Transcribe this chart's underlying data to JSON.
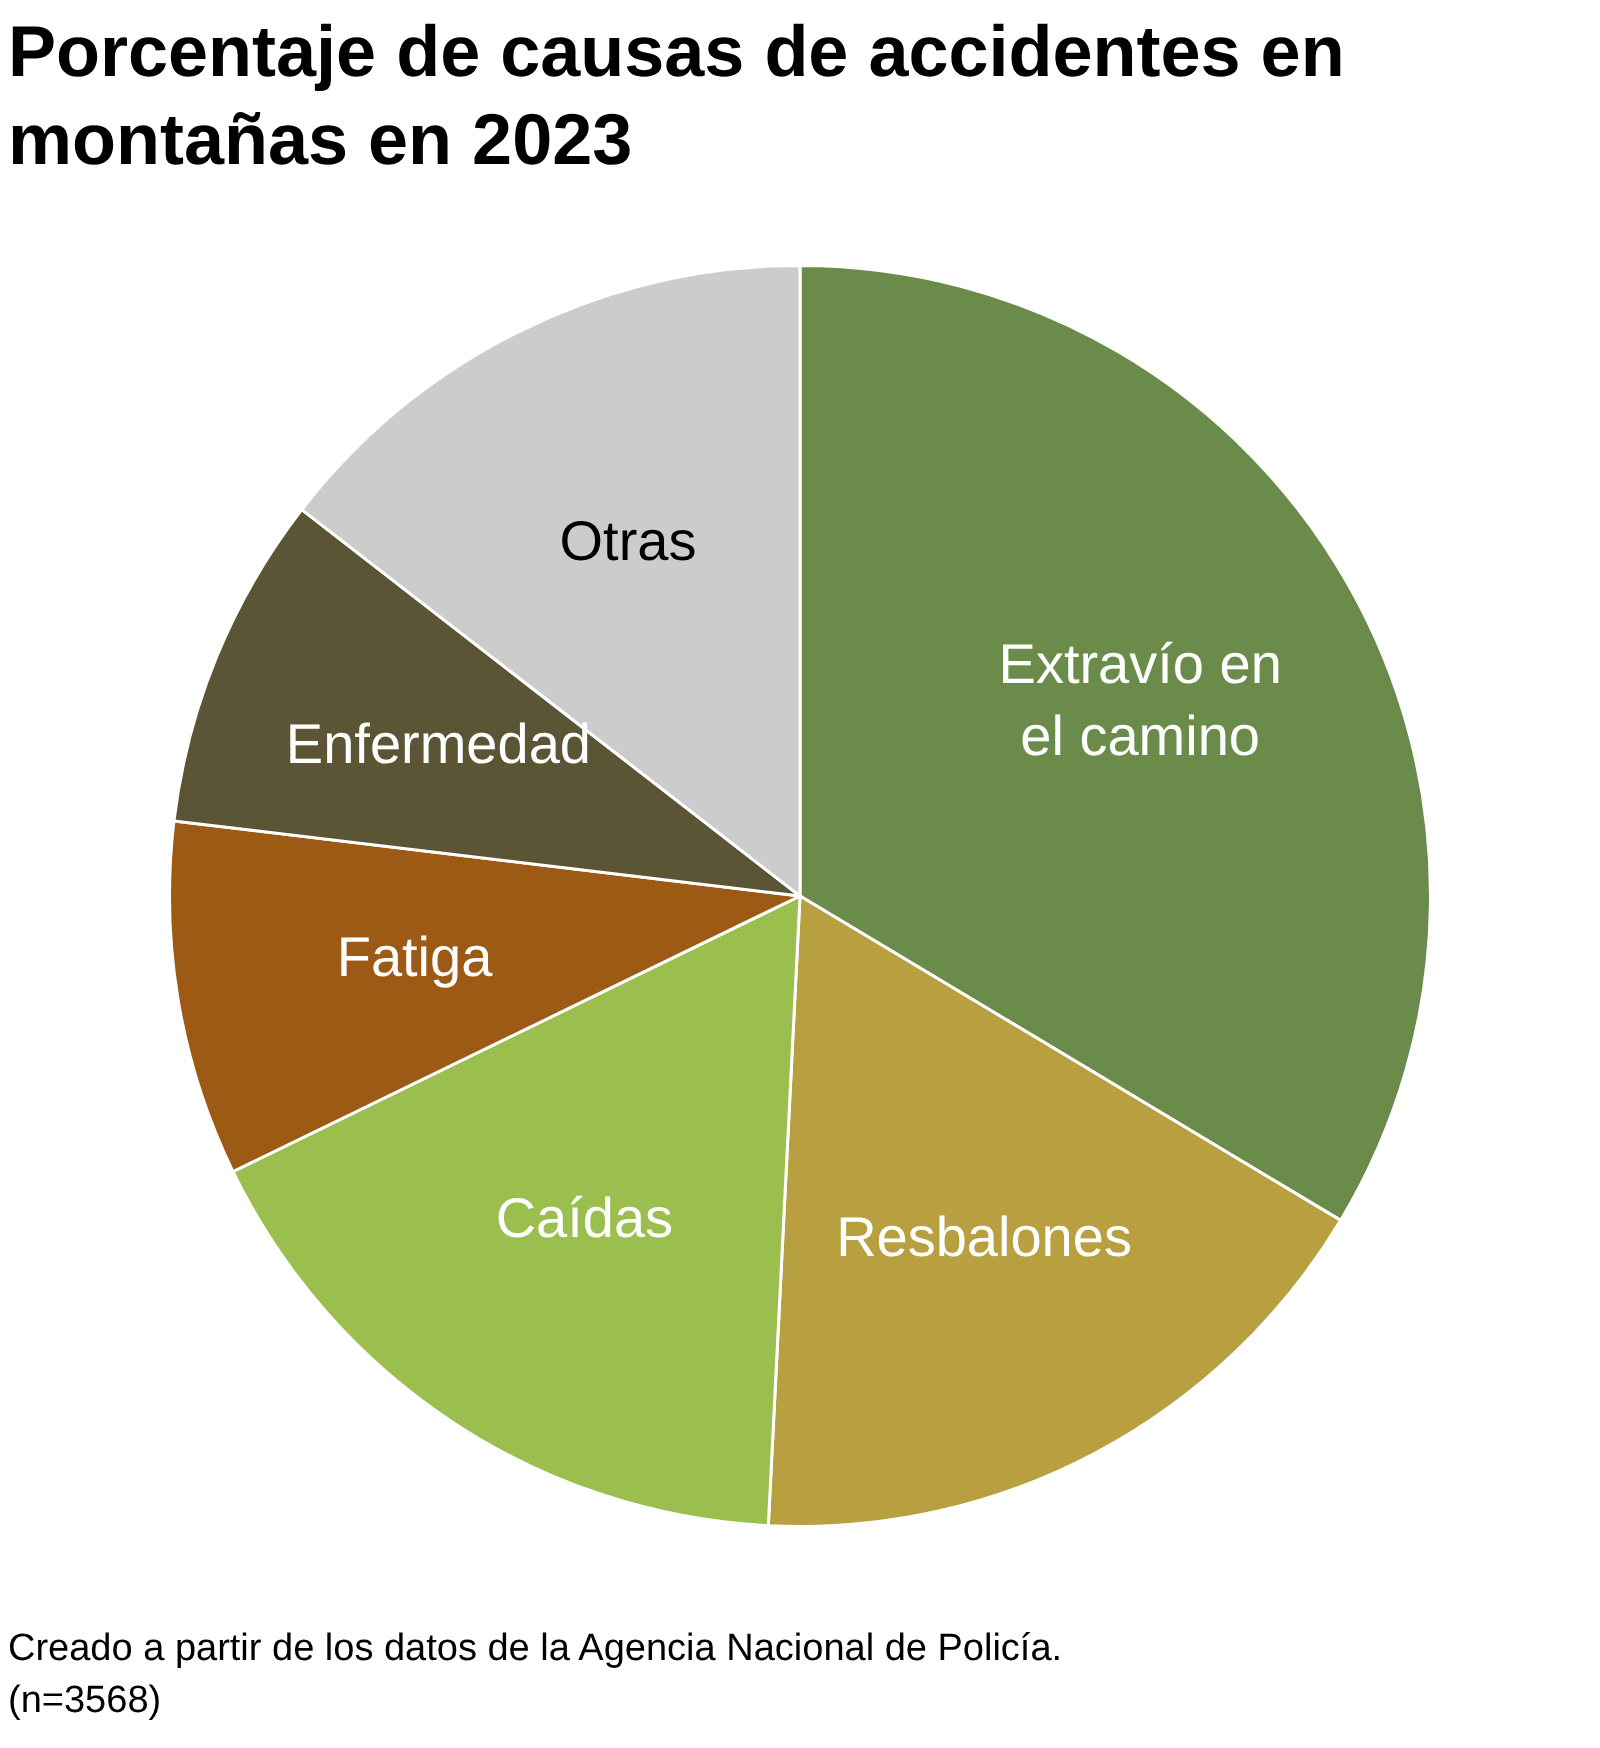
{
  "chart_data": {
    "type": "pie",
    "title": "Porcentaje de causas de accidentes en montañas en 2023",
    "categories": [
      "Extravío en el camino",
      "Resbalones",
      "Caídas",
      "Fatiga",
      "Enfermedad",
      "Otras"
    ],
    "values": [
      33.6,
      17.2,
      17,
      9.1,
      8.6,
      14.5
    ],
    "colors": [
      "#6a8b49",
      "#b89f40",
      "#9bbf4e",
      "#9c5a14",
      "#5b5535",
      "#cccccc"
    ],
    "annotations": [
      "Creado a partir de los datos de la Agencia Nacional de Policía. (n=3568)"
    ]
  }
}
